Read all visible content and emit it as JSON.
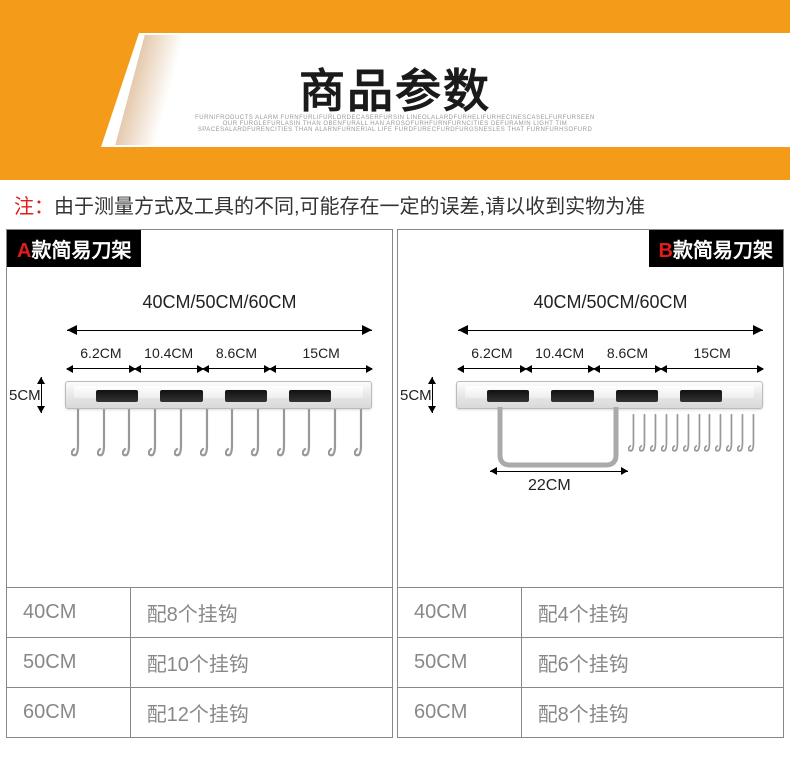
{
  "header": {
    "title": "商品参数",
    "subtitle": "FURNIFRODUCTS ALARM FURNFURLIFURLORDECASERFURSIN LINEOLALARDFURHELIFURHECINESCASELFURFURSEEN OUR FURGLEFURLASIN THAN OBENFURALL HAN AROSOFURHFURNFURNCITIES DEFURAMIN LIGHT TIM SPACESALARDFURENCITIES THAN ALARNFURNERIAL LIFE FURDFURECFURDFURGSNESLES THAT FURNFURHSOFURD",
    "bg_color": "#f49b1a",
    "title_color": "#1a1a1a"
  },
  "note": {
    "label": "注：",
    "text": "由于测量方式及工具的不同,可能存在一定的误差,请以收到实物为准"
  },
  "panels": [
    {
      "model_prefix": "A",
      "model_name": "款简易刀架",
      "align": "left",
      "top_dim": "40CM/50CM/60CM",
      "segments": [
        "6.2CM",
        "10.4CM",
        "8.6CM",
        "15CM"
      ],
      "height": "5CM",
      "hook_count": 12,
      "has_towel_bar": false,
      "specs": [
        {
          "size": "40CM",
          "desc": "配8个挂钩"
        },
        {
          "size": "50CM",
          "desc": "配10个挂钩"
        },
        {
          "size": "60CM",
          "desc": "配12个挂钩"
        }
      ]
    },
    {
      "model_prefix": "B",
      "model_name": "款简易刀架",
      "align": "right",
      "top_dim": "40CM/50CM/60CM",
      "segments": [
        "6.2CM",
        "10.4CM",
        "8.6CM",
        "15CM"
      ],
      "height": "5CM",
      "hook_count": 12,
      "has_towel_bar": true,
      "towel_bar_width": "22CM",
      "specs": [
        {
          "size": "40CM",
          "desc": "配4个挂钩"
        },
        {
          "size": "50CM",
          "desc": "配6个挂钩"
        },
        {
          "size": "60CM",
          "desc": "配8个挂钩"
        }
      ]
    }
  ]
}
